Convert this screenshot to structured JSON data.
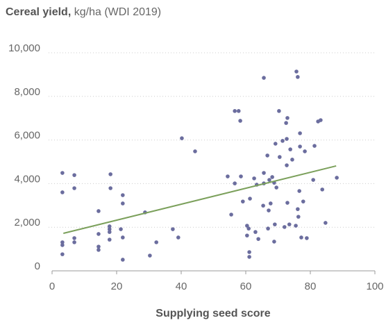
{
  "chart_data": {
    "type": "scatter",
    "title": "Cereal yield,",
    "units": "kg/ha (WDI 2019)",
    "xlabel": "Supplying seed score",
    "xlim": [
      0,
      100
    ],
    "xticks": [
      0,
      20,
      40,
      60,
      80,
      100
    ],
    "ylim": [
      0,
      10000
    ],
    "yticks": [
      0,
      {
        "value": 2000,
        "label": "2,000"
      },
      {
        "value": 4000,
        "label": "4,000"
      },
      {
        "value": 6000,
        "label": "6,000"
      },
      {
        "value": 8000,
        "label": "8,000"
      },
      {
        "value": 10000,
        "label": "10,000"
      }
    ],
    "grid": true,
    "series": [
      {
        "color": "#6b6d9e",
        "x": [
          3.2,
          3.2,
          3.2,
          3.2,
          3.2,
          6.9,
          6.9,
          6.9,
          6.9,
          14.4,
          14.4,
          14.4,
          14.4,
          18.1,
          18.1,
          17.8,
          17.8,
          17.8,
          17.8,
          21.9,
          21.9,
          21.3,
          21.9,
          21.9,
          28.8,
          30.3,
          32.3,
          37.4,
          39.1,
          40.2,
          44.3,
          54.4,
          55.5,
          56.6,
          57.8,
          56.6,
          58.3,
          58.5,
          59.1,
          60.4,
          60.9,
          61.1,
          61.1,
          61.3,
          60.4,
          62.6,
          63.0,
          63.4,
          63.9,
          65.6,
          65.6,
          65.4,
          65.6,
          66.7,
          67.3,
          66.9,
          67.1,
          67.7,
          68.2,
          68.8,
          69.0,
          68.8,
          69.2,
          69.5,
          70.3,
          70.5,
          71.4,
          72.0,
          72.5,
          72.7,
          72.9,
          72.9,
          72.7,
          73.5,
          73.8,
          74.4,
          75.5,
          76.1,
          75.7,
          76.1,
          76.3,
          76.6,
          76.8,
          76.8,
          77.2,
          77.8,
          78.3,
          78.9,
          80.9,
          81.3,
          82.4,
          83.2,
          83.7,
          84.7,
          88.2
        ],
        "values": [
          4490,
          3600,
          1310,
          1180,
          760,
          4390,
          3790,
          1500,
          1310,
          2740,
          1690,
          1110,
          960,
          4430,
          3790,
          2040,
          1910,
          1780,
          1430,
          3470,
          3090,
          1910,
          1530,
          510,
          2680,
          700,
          1310,
          1910,
          1530,
          6080,
          5480,
          4330,
          2580,
          7330,
          7330,
          4010,
          6880,
          4330,
          3180,
          2070,
          1940,
          860,
          640,
          3310,
          1620,
          4240,
          1780,
          3950,
          1460,
          8850,
          4010,
          2990,
          4490,
          5290,
          4170,
          1940,
          2770,
          3090,
          4300,
          1340,
          2130,
          4040,
          5830,
          3820,
          7330,
          5220,
          5960,
          2010,
          6780,
          4840,
          7010,
          3120,
          6050,
          2130,
          5570,
          5100,
          2070,
          8890,
          9140,
          2830,
          2480,
          3660,
          6310,
          5700,
          1530,
          3180,
          5480,
          1500,
          4170,
          5730,
          6850,
          6910,
          3730,
          2200,
          4270
        ]
      }
    ],
    "trendline": {
      "color": "#7ba05b",
      "x": [
        3.5,
        88
      ],
      "values": [
        1720,
        4810
      ]
    }
  }
}
